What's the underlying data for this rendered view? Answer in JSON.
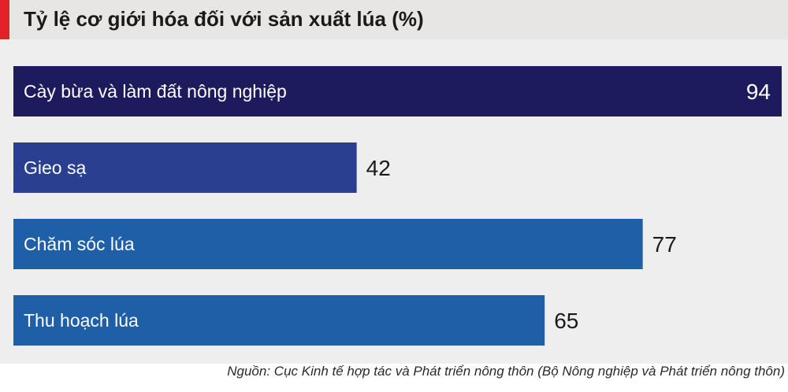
{
  "chart_data": {
    "type": "bar",
    "orientation": "horizontal",
    "title": "Tỷ lệ cơ giới hóa đối với sản xuất lúa (%)",
    "categories": [
      "Cày bừa và làm đất nông nghiệp",
      "Gieo sạ",
      "Chăm sóc lúa",
      "Thu hoạch lúa"
    ],
    "values": [
      94,
      42,
      77,
      65
    ],
    "value_labels": [
      "94",
      "42",
      "77",
      "65"
    ],
    "xlim": [
      0,
      94
    ],
    "grid": false,
    "colors": [
      "#1d1b5e",
      "#2a3f8f",
      "#1f5fa8",
      "#1f5fa8"
    ],
    "source": "Nguồn: Cục Kinh tế hợp tác và Phát triển nông thôn (Bộ Nông nghiệp và Phát triển nông thôn)"
  },
  "colors": {
    "accent": "#e3212b",
    "title_bg": "#e8e6e5",
    "plot_bg": "#eeeeee"
  }
}
